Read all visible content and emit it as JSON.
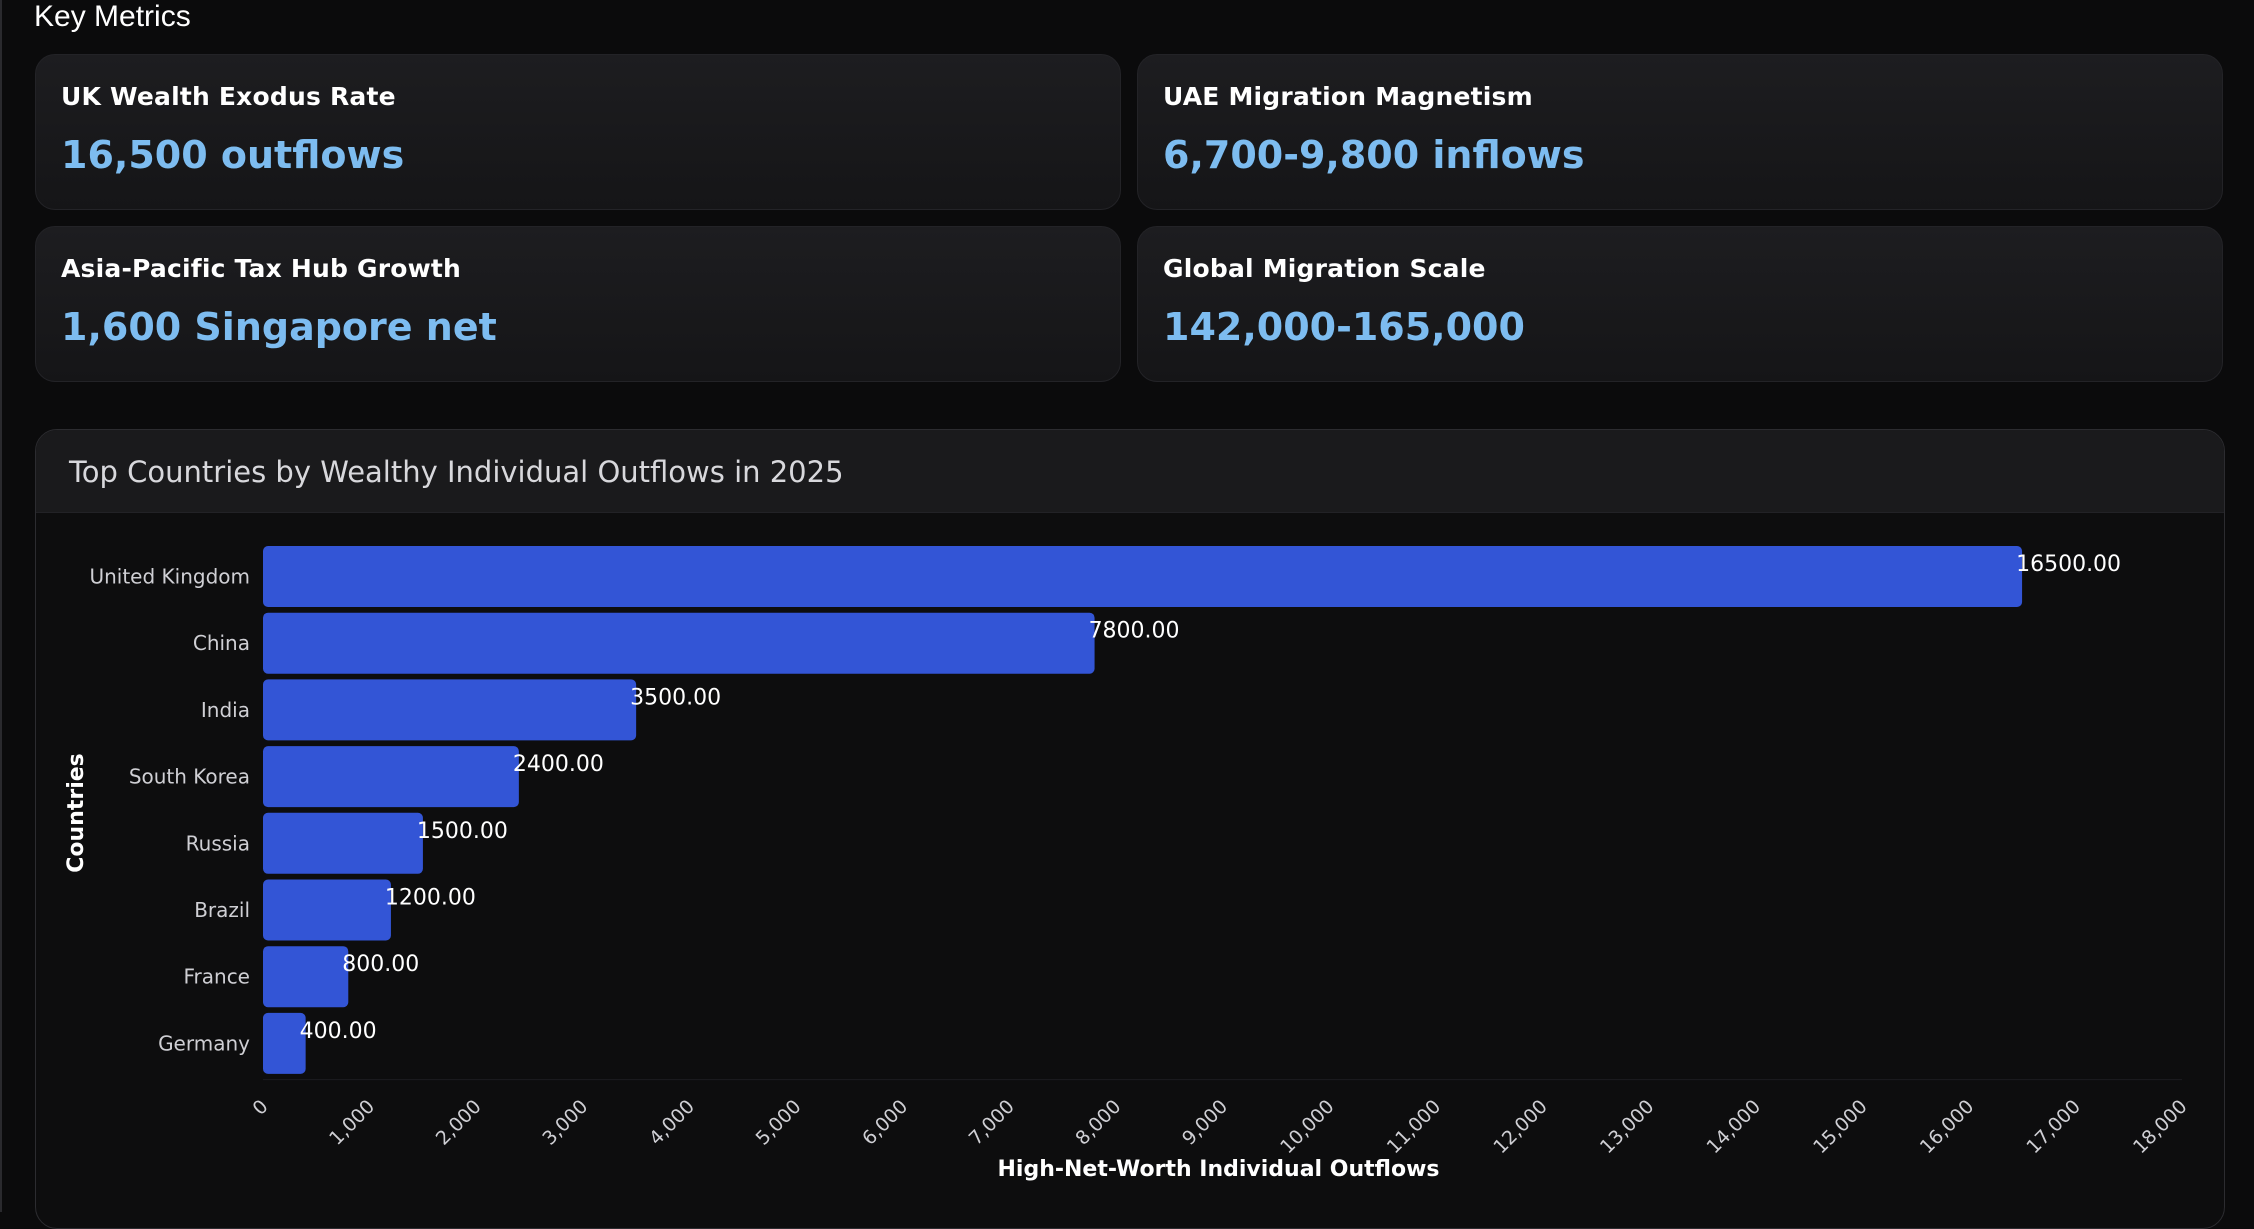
{
  "section_title": "Key Metrics",
  "metrics": [
    {
      "label": "UK Wealth Exodus Rate",
      "value": "16,500 outflows"
    },
    {
      "label": "UAE Migration Magnetism",
      "value": "6,700-9,800 inflows"
    },
    {
      "label": "Asia-Pacific Tax Hub Growth",
      "value": "1,600 Singapore net"
    },
    {
      "label": "Global Migration Scale",
      "value": "142,000-165,000"
    }
  ],
  "colors": {
    "accent": "#7dbcf0",
    "bar": "#3355d6",
    "background": "#0b0b0c",
    "card": "#1a1a1c"
  },
  "chart_data": {
    "type": "bar",
    "orientation": "horizontal",
    "title": "Top Countries by Wealthy Individual Outflows in 2025",
    "xlabel": "High-Net-Worth Individual Outflows",
    "ylabel": "Countries",
    "categories": [
      "United Kingdom",
      "China",
      "India",
      "South Korea",
      "Russia",
      "Brazil",
      "France",
      "Germany"
    ],
    "values": [
      16500,
      7800,
      3500,
      2400,
      1500,
      1200,
      800,
      400
    ],
    "value_labels": [
      "16500.00",
      "7800.00",
      "3500.00",
      "2400.00",
      "1500.00",
      "1200.00",
      "800.00",
      "400.00"
    ],
    "xlim": [
      0,
      18000
    ],
    "xticks": [
      0,
      1000,
      2000,
      3000,
      4000,
      5000,
      6000,
      7000,
      8000,
      9000,
      10000,
      11000,
      12000,
      13000,
      14000,
      15000,
      16000,
      17000,
      18000
    ],
    "xtick_labels": [
      "0",
      "1,000",
      "2,000",
      "3,000",
      "4,000",
      "5,000",
      "6,000",
      "7,000",
      "8,000",
      "9,000",
      "10,000",
      "11,000",
      "12,000",
      "13,000",
      "14,000",
      "15,000",
      "16,000",
      "17,000",
      "18,000"
    ],
    "grid": false
  }
}
